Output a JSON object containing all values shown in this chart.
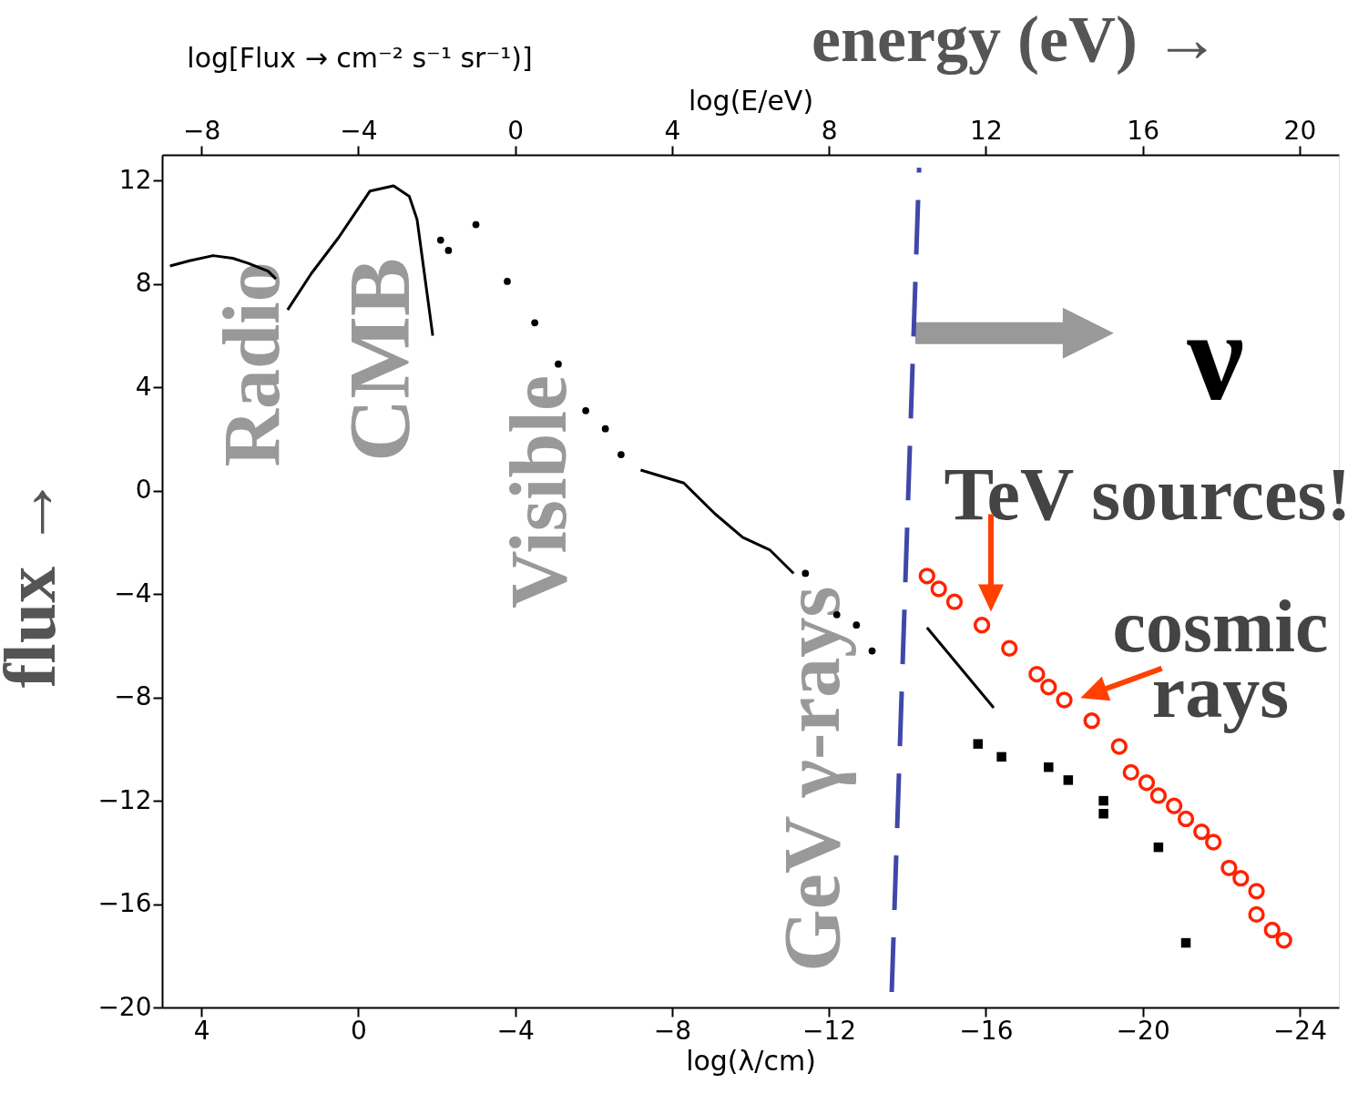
{
  "chart_data": {
    "type": "line",
    "xlabel": "log(λ/cm)",
    "x2label": "log(E/eV)",
    "ylabel": "flux →",
    "xlim": [
      5,
      -25
    ],
    "xticks": [
      4,
      0,
      -4,
      -8,
      -12,
      -16,
      -20,
      -24
    ],
    "x2lim": [
      -9,
      21
    ],
    "x2ticks": [
      -8,
      -4,
      0,
      4,
      8,
      12,
      16,
      20
    ],
    "ylim": [
      -20,
      13
    ],
    "yticks": [
      -20,
      -16,
      -12,
      -8,
      -4,
      0,
      4,
      8,
      12
    ],
    "grid": false,
    "series": [
      {
        "color": "#000000",
        "x": [
          4.8,
          4.3,
          3.7,
          3.2,
          2.8,
          2.3,
          2.1
        ],
        "values": [
          8.7,
          8.9,
          9.1,
          9.0,
          8.8,
          8.5,
          8.2
        ]
      },
      {
        "color": "#000000",
        "x": [
          1.8,
          1.2,
          0.5,
          -0.3,
          -0.9,
          -1.3,
          -1.5,
          -1.9
        ],
        "values": [
          7.0,
          8.4,
          9.8,
          11.6,
          11.8,
          11.4,
          10.5,
          6.0
        ]
      },
      {
        "type": "scatter",
        "marker": "circle",
        "color": "#000000",
        "x": [
          -2.1,
          -2.3,
          -3.0,
          -3.8,
          -4.5,
          -5.1,
          -5.8,
          -6.3,
          -6.7
        ],
        "values": [
          9.7,
          9.3,
          10.3,
          8.1,
          6.5,
          4.9,
          3.1,
          2.4,
          1.4
        ]
      },
      {
        "color": "#000000",
        "x": [
          -7.2,
          -8.3,
          -9.1,
          -9.8,
          -10.5,
          -11.1
        ],
        "values": [
          0.8,
          0.3,
          -0.9,
          -1.8,
          -2.3,
          -3.2
        ]
      },
      {
        "type": "scatter",
        "marker": "circle",
        "color": "#000000",
        "x": [
          -11.4,
          -12.2,
          -12.7,
          -13.1
        ],
        "values": [
          -3.2,
          -4.8,
          -5.2,
          -6.2
        ]
      },
      {
        "color": "#000000",
        "x": [
          -14.5,
          -16.2
        ],
        "values": [
          -5.3,
          -8.4
        ]
      },
      {
        "type": "scatter",
        "marker": "square",
        "color": "#000000",
        "x": [
          -15.8,
          -16.4,
          -17.6,
          -18.1,
          -19.0,
          -19.0,
          -20.4,
          -21.1
        ],
        "values": [
          -9.8,
          -10.3,
          -10.7,
          -11.2,
          -12.0,
          -12.5,
          -13.8,
          -17.5
        ]
      },
      {
        "type": "scatter",
        "marker": "circle",
        "color": "#ff2200",
        "x": [
          -14.5,
          -14.8,
          -15.2,
          -15.9,
          -16.6,
          -17.3,
          -17.6,
          -18.0,
          -18.7,
          -19.4,
          -19.7,
          -20.1,
          -20.4,
          -20.8,
          -21.1,
          -21.5,
          -21.8,
          -22.2,
          -22.5,
          -22.9,
          -22.9,
          -23.3,
          -23.6
        ],
        "values": [
          -3.3,
          -3.8,
          -4.3,
          -5.2,
          -6.1,
          -7.1,
          -7.6,
          -8.1,
          -8.9,
          -9.9,
          -10.9,
          -11.3,
          -11.8,
          -12.2,
          -12.7,
          -13.2,
          -13.6,
          -14.6,
          -15.0,
          -15.5,
          -16.4,
          -17.0,
          -17.4
        ]
      },
      {
        "line_style": "dashed",
        "color": "#3f48a8",
        "x": [
          -13.6,
          -14.3
        ],
        "values": [
          -19.4,
          12.5
        ]
      }
    ],
    "annotations": [
      "Radio",
      "CMB",
      "Visible",
      "GeV γ-rays",
      "TeV sources!",
      "cosmic\nrays",
      {
        "text": "ν",
        "x": -14.2,
        "y": 6.1
      },
      "energy (eV) →",
      "log[Flux → cm⁻² s⁻¹ sr⁻¹)]"
    ]
  }
}
